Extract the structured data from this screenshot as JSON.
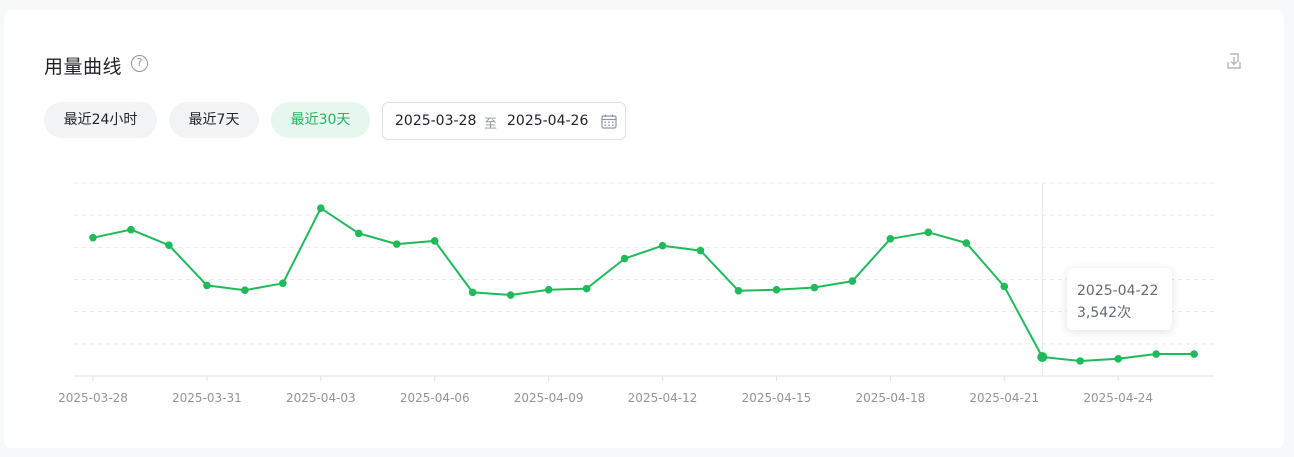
{
  "header": {
    "title": "用量曲线",
    "help_icon": "question-circle-icon",
    "download_icon": "download-icon"
  },
  "filters": {
    "buttons": [
      {
        "label": "最近24小时",
        "active": false
      },
      {
        "label": "最近7天",
        "active": false
      },
      {
        "label": "最近30天",
        "active": true
      }
    ],
    "range": {
      "start": "2025-03-28",
      "separator": "至",
      "end": "2025-04-26",
      "icon": "calendar-icon"
    }
  },
  "colors": {
    "line": "#1fba5a",
    "accent": "#21b35d",
    "grid": "#e5e6eb"
  },
  "tooltip": {
    "date": "2025-04-22",
    "value_text": "3,542次"
  },
  "chart_data": {
    "type": "line",
    "title": "",
    "xlabel": "",
    "ylabel": "",
    "ylim": [
      0,
      36000
    ],
    "grid": true,
    "y_ticks_visible": false,
    "x": [
      "2025-03-28",
      "2025-03-29",
      "2025-03-30",
      "2025-03-31",
      "2025-04-01",
      "2025-04-02",
      "2025-04-03",
      "2025-04-04",
      "2025-04-05",
      "2025-04-06",
      "2025-04-07",
      "2025-04-08",
      "2025-04-09",
      "2025-04-10",
      "2025-04-11",
      "2025-04-12",
      "2025-04-13",
      "2025-04-14",
      "2025-04-15",
      "2025-04-16",
      "2025-04-17",
      "2025-04-18",
      "2025-04-19",
      "2025-04-20",
      "2025-04-21",
      "2025-04-22",
      "2025-04-23",
      "2025-04-24",
      "2025-04-25",
      "2025-04-26"
    ],
    "tick_labels": [
      "2025-03-28",
      "2025-03-31",
      "2025-04-03",
      "2025-04-06",
      "2025-04-09",
      "2025-04-12",
      "2025-04-15",
      "2025-04-18",
      "2025-04-21",
      "2025-04-24"
    ],
    "series": [
      {
        "values": [
          25800,
          27300,
          24400,
          16900,
          16000,
          17300,
          31300,
          26600,
          24600,
          25200,
          15600,
          15100,
          16100,
          16300,
          21900,
          24300,
          23400,
          15900,
          16100,
          16500,
          17700,
          25600,
          26800,
          24800,
          16700,
          3542,
          2800,
          3200,
          4100,
          4100
        ]
      }
    ],
    "highlight_index": 25
  }
}
